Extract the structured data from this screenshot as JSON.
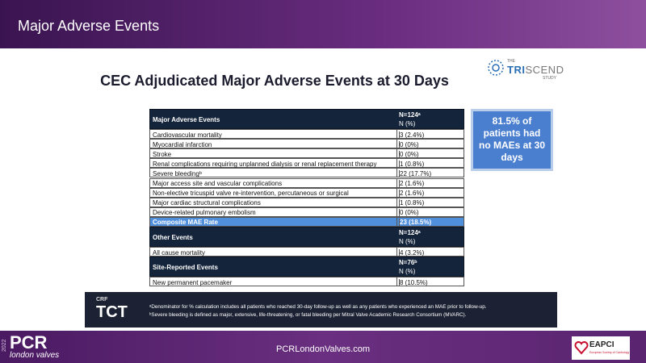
{
  "header": {
    "title": "Major Adverse Events"
  },
  "slide": {
    "title": "CEC Adjudicated Major Adverse Events at 30 Days",
    "logo": {
      "prefix": "THE",
      "name_a": "TRI",
      "name_b": "SCEND",
      "suffix": "STUDY"
    }
  },
  "table": {
    "sections": [
      {
        "label": "Major Adverse Events",
        "n": "N=124ᵃ",
        "unit": "N (%)",
        "rows": [
          {
            "event": "Cardiovascular mortality",
            "value": "3 (2.4%)"
          },
          {
            "event": "Myocardial infarction",
            "value": "0 (0%)"
          },
          {
            "event": "Stroke",
            "value": "0 (0%)"
          },
          {
            "event": "Renal complications requiring unplanned dialysis or renal replacement therapy",
            "value": "1 (0.8%)"
          },
          {
            "event": "Severe bleedingᵇ",
            "value": "22 (17.7%)"
          },
          {
            "event": "Major access site and vascular complications",
            "value": "2 (1.6%)"
          },
          {
            "event": "Non-elective tricuspid valve re-intervention, percutaneous or surgical",
            "value": "2 (1.6%)"
          },
          {
            "event": "Major cardiac structural complications",
            "value": "1 (0.8%)"
          },
          {
            "event": "Device-related pulmonary embolism",
            "value": "0 (0%)"
          }
        ],
        "total": {
          "event": "Composite MAE Rate",
          "value": "23 (18.5%)"
        }
      },
      {
        "label": "Other Events",
        "n": "N=124ᵃ",
        "unit": "N (%)",
        "rows": [
          {
            "event": "All cause mortality",
            "value": "4 (3.2%)"
          }
        ]
      },
      {
        "label": "Site-Reported Events",
        "n": "N=76ᵇ",
        "unit": "N (%)",
        "rows": [
          {
            "event": "New permanent pacemaker",
            "value": "8 (10.5%)"
          }
        ]
      }
    ]
  },
  "callout": "81.5% of patients had no MAEs at 30 days",
  "sponsor": {
    "crf": "CRF",
    "tct": "TCT"
  },
  "footnotes": [
    "ᵃDenominator for % calculation includes all patients who reached 30-day follow-up as well as any patients who experienced an MAE prior to follow-up.",
    "ᵇSevere bleeding is defined as major, extensive, life-threatening, or fatal bleeding per Mitral Valve Academic Research Consortium (MVARC)."
  ],
  "footer": {
    "year": "2022",
    "brand": "PCR",
    "sub": "london valves",
    "url": "PCRLondonValves.com",
    "partner": "EAPCI",
    "partner_sub": "European Society of Cardiology"
  }
}
